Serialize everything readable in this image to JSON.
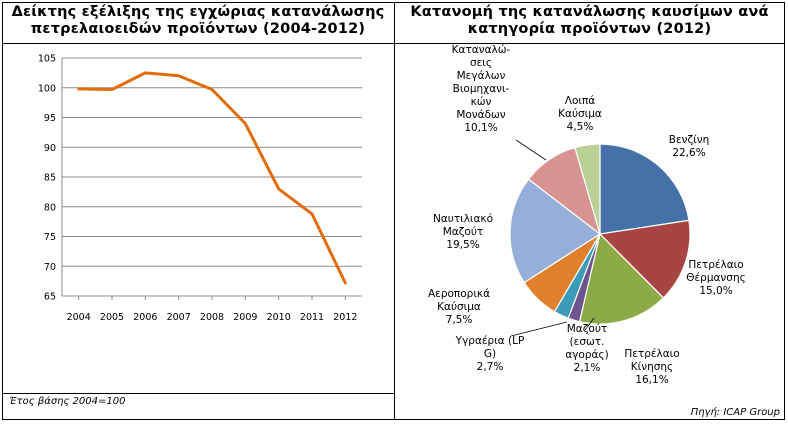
{
  "chart_data": [
    {
      "type": "line",
      "title_lines": [
        "Δείκτης εξέλιξης της εγχώριας κατανάλωσης",
        "πετρελαιοειδών προϊόντων (2004-2012)"
      ],
      "x": [
        "2004",
        "2005",
        "2006",
        "2007",
        "2008",
        "2009",
        "2010",
        "2011",
        "2012"
      ],
      "series": [
        {
          "values": [
            99.8,
            99.7,
            102.5,
            102.0,
            99.7,
            94.0,
            83.0,
            78.8,
            67.2
          ]
        }
      ],
      "ylim": [
        65,
        105
      ],
      "yticks": [
        "65",
        "70",
        "75",
        "80",
        "85",
        "90",
        "95",
        "100",
        "105"
      ],
      "grid": true,
      "line_color": "#E36C0A",
      "footnote": "Έτος βάσης 2004=100"
    },
    {
      "type": "pie",
      "title_lines": [
        "Κατανομή της κατανάλωσης καυσίμων ανά",
        "κατηγορία προϊόντων (2012)"
      ],
      "slices": [
        {
          "label_lines": [
            "Βενζίνη",
            "22,6%"
          ],
          "value": 22.6,
          "color": "#4472A8"
        },
        {
          "label_lines": [
            "Πετρέλαιο",
            "Θέρμανσης",
            "15,0%"
          ],
          "value": 15.0,
          "color": "#A84442"
        },
        {
          "label_lines": [
            "Πετρέλαιο",
            "Κίνησης",
            "16,1%"
          ],
          "value": 16.1,
          "color": "#8CAA48"
        },
        {
          "label_lines": [
            "Μαζούτ",
            "(εσωτ.",
            "αγοράς)",
            "2,1%"
          ],
          "value": 2.1,
          "color": "#6E548E"
        },
        {
          "label_lines": [
            "Υγραέρια (LP",
            "G)",
            "2,7%"
          ],
          "value": 2.7,
          "color": "#3A9CB8"
        },
        {
          "label_lines": [
            "Αεροπορικά",
            "Καύσιμα",
            "7,5%"
          ],
          "value": 7.5,
          "color": "#E0802C"
        },
        {
          "label_lines": [
            "Ναυτιλιακό",
            "Μαζούτ",
            "19,5%"
          ],
          "value": 19.5,
          "color": "#96AEDA"
        },
        {
          "label_lines": [
            "Καταναλώ-",
            "σεις",
            "Μεγάλων",
            "Βιομηχανι-",
            "κών",
            "Μονάδων",
            "10,1%"
          ],
          "value": 10.1,
          "color": "#D69392"
        },
        {
          "label_lines": [
            "Λοιπά",
            "Καύσιμα",
            "4,5%"
          ],
          "value": 4.5,
          "color": "#B9D196"
        }
      ],
      "source": "Πηγή: ICAP Group"
    }
  ]
}
